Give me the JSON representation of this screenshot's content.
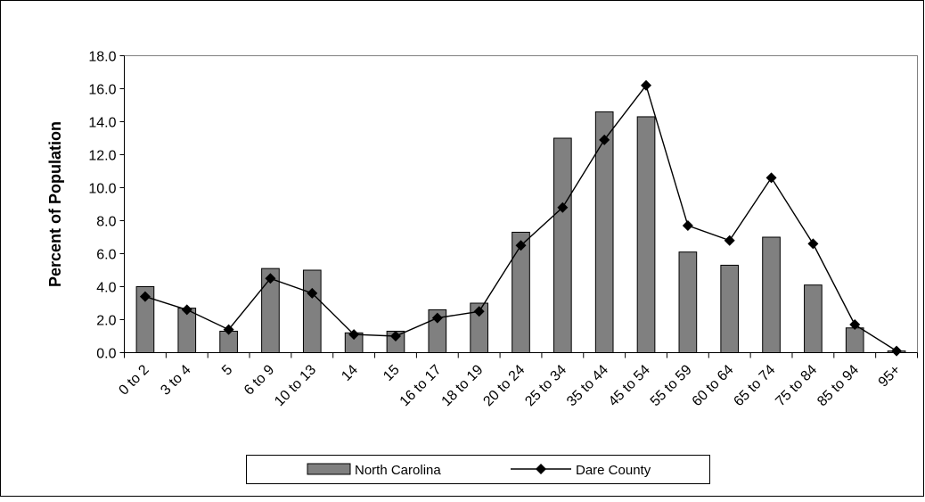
{
  "chart_data": {
    "type": "bar",
    "title": "",
    "xlabel": "",
    "ylabel": "Percent of Population",
    "ylim": [
      0,
      18
    ],
    "yticks": [
      "0.0",
      "2.0",
      "4.0",
      "6.0",
      "8.0",
      "10.0",
      "12.0",
      "14.0",
      "16.0",
      "18.0"
    ],
    "categories": [
      "0 to 2",
      "3 to 4",
      "5",
      "6 to 9",
      "10 to 13",
      "14",
      "15",
      "16 to 17",
      "18 to 19",
      "20 to 24",
      "25 to 34",
      "35 to 44",
      "45 to 54",
      "55 to 59",
      "60 to 64",
      "65 to 74",
      "75 to 84",
      "85 to 94",
      "95+"
    ],
    "grid": false,
    "legend_position": "bottom",
    "series": [
      {
        "name": "North Carolina",
        "kind": "bar",
        "color": "#808080",
        "values": [
          4.0,
          2.7,
          1.3,
          5.1,
          5.0,
          1.2,
          1.3,
          2.6,
          3.0,
          7.3,
          13.0,
          14.6,
          14.3,
          6.1,
          5.3,
          7.0,
          4.1,
          1.5,
          0.1
        ]
      },
      {
        "name": "Dare County",
        "kind": "line",
        "color": "#000000",
        "marker": "diamond",
        "values": [
          3.4,
          2.6,
          1.4,
          4.5,
          3.6,
          1.1,
          1.0,
          2.1,
          2.5,
          6.5,
          8.8,
          12.9,
          16.2,
          7.7,
          6.8,
          10.6,
          6.6,
          1.7,
          0.1
        ]
      }
    ]
  }
}
